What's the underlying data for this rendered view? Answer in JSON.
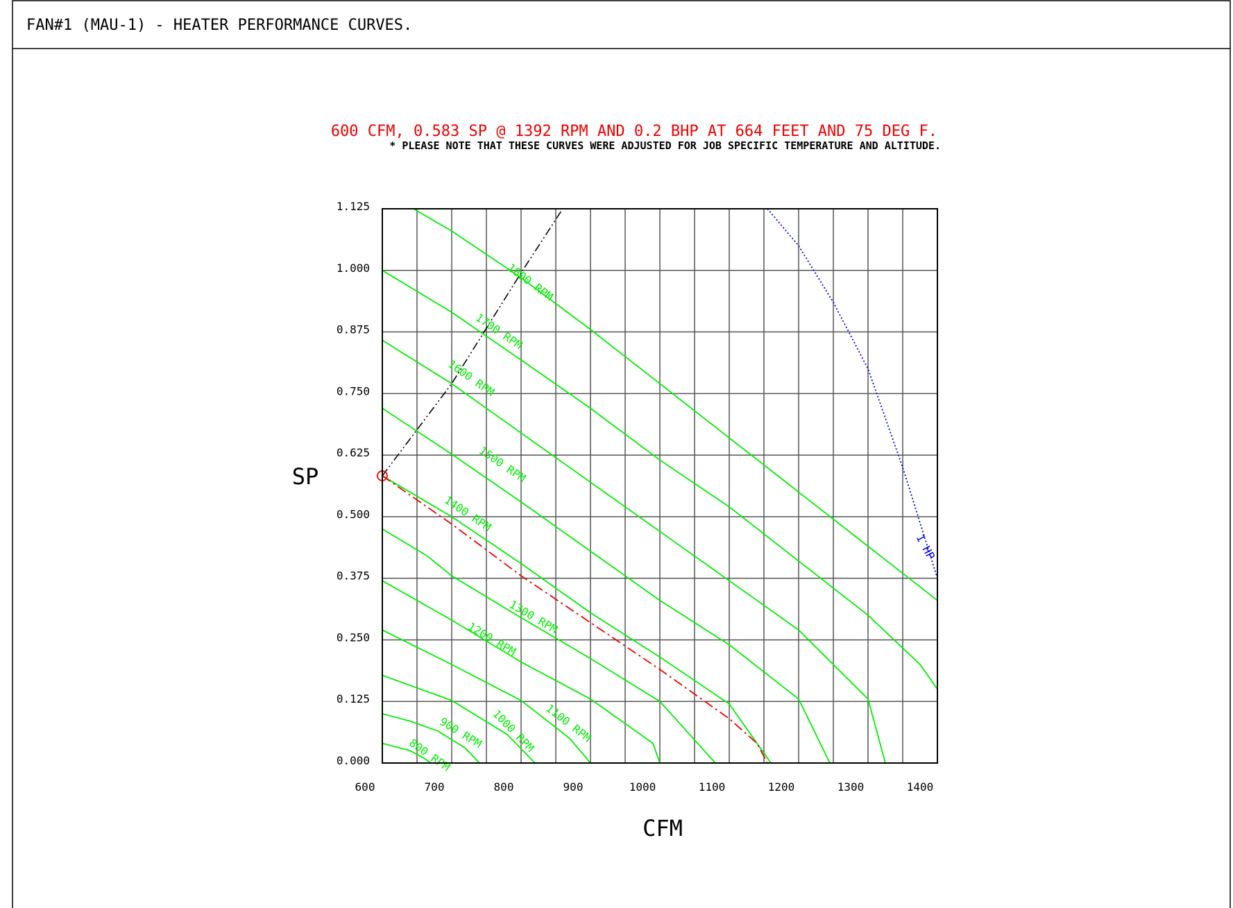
{
  "header": {
    "title": "FAN#1 (MAU-1) - HEATER PERFORMANCE CURVES."
  },
  "chart_data": {
    "type": "line",
    "title": "600 CFM, 0.583 SP @ 1392 RPM AND 0.2 BHP AT 664 FEET AND 75 DEG F.",
    "subtitle": "* PLEASE NOTE THAT THESE CURVES WERE ADJUSTED FOR JOB SPECIFIC TEMPERATURE AND ALTITUDE.",
    "xlabel": "CFM",
    "ylabel": "SP",
    "xlim": [
      600,
      1400
    ],
    "ylim": [
      0,
      1.125
    ],
    "xticks": [
      600,
      700,
      800,
      900,
      1000,
      1100,
      1200,
      1300,
      1400
    ],
    "xtick_labels": [
      "600",
      "700",
      "800",
      "900",
      "1000",
      "1100",
      "1200",
      "1300",
      "1400"
    ],
    "yticks": [
      0,
      0.125,
      0.25,
      0.375,
      0.5,
      0.625,
      0.75,
      0.875,
      1.0,
      1.125
    ],
    "ytick_labels": [
      "0.000",
      "0.125",
      "0.250",
      "0.375",
      "0.500",
      "0.625",
      "0.750",
      "0.875",
      "1.000",
      "1.125"
    ],
    "grid": true,
    "colors": {
      "rpm_curves": "#00ee00",
      "operating_curve": "#ee0000",
      "operating_point": "#ee0000",
      "system_line": "#000000",
      "hp_line": "#0000ee",
      "title": "#ee0000",
      "grid": "#555555"
    },
    "series": [
      {
        "name": "800 RPM",
        "label": "800 RPM",
        "label_at": [
          665,
          0.01
        ],
        "x": [
          600,
          640,
          660,
          670
        ],
        "y": [
          0.04,
          0.025,
          0.01,
          0
        ]
      },
      {
        "name": "900 RPM",
        "label": "900 RPM",
        "label_at": [
          710,
          0.055
        ],
        "x": [
          600,
          640,
          680,
          720,
          740
        ],
        "y": [
          0.1,
          0.085,
          0.065,
          0.03,
          0
        ]
      },
      {
        "name": "1000 RPM",
        "label": "1000 RPM",
        "label_at": [
          785,
          0.06
        ],
        "x": [
          600,
          700,
          780,
          820
        ],
        "y": [
          0.178,
          0.127,
          0.058,
          0
        ]
      },
      {
        "name": "1100 RPM",
        "label": "1100 RPM",
        "label_at": [
          865,
          0.075
        ],
        "x": [
          600,
          700,
          800,
          870,
          900
        ],
        "y": [
          0.27,
          0.2,
          0.127,
          0.05,
          0
        ]
      },
      {
        "name": "1200 RPM",
        "label": "1200 RPM",
        "label_at": [
          755,
          0.245
        ],
        "x": [
          600,
          700,
          800,
          900,
          990,
          1000
        ],
        "y": [
          0.37,
          0.29,
          0.205,
          0.13,
          0.04,
          0
        ]
      },
      {
        "name": "1300 RPM",
        "label": "1300 RPM",
        "label_at": [
          815,
          0.29
        ],
        "x": [
          600,
          665,
          700,
          800,
          900,
          1000,
          1080
        ],
        "y": [
          0.475,
          0.42,
          0.38,
          0.295,
          0.212,
          0.125,
          0
        ]
      },
      {
        "name": "1400 RPM",
        "label": "1400 RPM",
        "label_at": [
          720,
          0.5
        ],
        "x": [
          600,
          700,
          800,
          900,
          1000,
          1100,
          1160
        ],
        "y": [
          0.583,
          0.5,
          0.405,
          0.305,
          0.215,
          0.12,
          0
        ]
      },
      {
        "name": "1500 RPM",
        "label": "1500 RPM",
        "label_at": [
          770,
          0.6
        ],
        "x": [
          600,
          700,
          800,
          900,
          1000,
          1100,
          1200,
          1245
        ],
        "y": [
          0.72,
          0.627,
          0.53,
          0.43,
          0.33,
          0.24,
          0.13,
          0
        ]
      },
      {
        "name": "1600 RPM",
        "label": "1600 RPM",
        "label_at": [
          725,
          0.775
        ],
        "x": [
          600,
          700,
          800,
          900,
          1000,
          1100,
          1200,
          1300,
          1325
        ],
        "y": [
          0.858,
          0.77,
          0.67,
          0.57,
          0.47,
          0.37,
          0.27,
          0.13,
          0
        ]
      },
      {
        "name": "1700 RPM",
        "label": "1700 RPM",
        "label_at": [
          765,
          0.87
        ],
        "x": [
          600,
          700,
          800,
          900,
          1000,
          1100,
          1200,
          1300,
          1375,
          1400
        ],
        "y": [
          1.0,
          0.915,
          0.818,
          0.72,
          0.615,
          0.52,
          0.41,
          0.3,
          0.2,
          0.15
        ]
      },
      {
        "name": "1800 RPM",
        "label": "1800 RPM",
        "label_at": [
          810,
          0.97
        ],
        "x": [
          645,
          700,
          800,
          900,
          1000,
          1100,
          1200,
          1300,
          1400
        ],
        "y": [
          1.125,
          1.08,
          0.985,
          0.88,
          0.77,
          0.66,
          0.55,
          0.44,
          0.33
        ]
      }
    ],
    "operating_curve": {
      "x": [
        600,
        700,
        800,
        900,
        1000,
        1100,
        1140,
        1155
      ],
      "y": [
        0.583,
        0.485,
        0.38,
        0.285,
        0.19,
        0.09,
        0.04,
        0
      ]
    },
    "operating_point": {
      "x": 600,
      "y": 0.583
    },
    "system_curve": {
      "x": [
        600,
        700,
        800,
        860
      ],
      "y": [
        0.583,
        0.77,
        0.995,
        1.125
      ]
    },
    "hp_line": {
      "label": "1 HP",
      "label_at": [
        1378,
        0.435
      ],
      "x": [
        1155,
        1200,
        1250,
        1300,
        1350,
        1400
      ],
      "y": [
        1.125,
        1.05,
        0.935,
        0.8,
        0.6,
        0.375
      ]
    }
  }
}
